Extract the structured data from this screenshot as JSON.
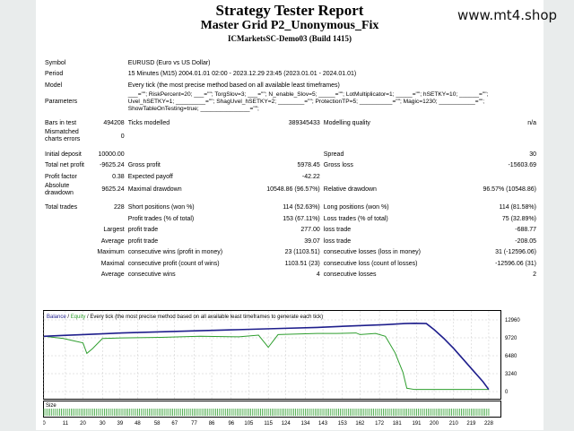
{
  "header": {
    "title": "Strategy Tester Report",
    "ea_name": "Master Grid P2_Unonymous_Fix",
    "server": "ICMarketsSC-Demo03 (Build 1415)",
    "watermark": "www.mt4.shop"
  },
  "report": {
    "symbol": {
      "label": "Symbol",
      "value": "EURUSD (Euro vs US Dollar)"
    },
    "period": {
      "label": "Period",
      "value": "15 Minutes (M15) 2004.01.01 02:00 - 2023.12.29 23:45 (2023.01.01 - 2024.01.01)"
    },
    "model": {
      "label": "Model",
      "value": "Every tick (the most precise method based on all available least timeframes)"
    },
    "parameters": {
      "label": "Parameters",
      "lines": [
        "___=\"\"; RiskPercent=20; ___=\"\"; TorgSlov=3; ___=\"\"; N_enable_Slov=5; _____=\"\"; LotMultiplicator=1; _____=\"\"; hSETKY=10; ______=\"\";",
        "Uvel_hSETKY=1; _________=\"\"; ShagUvel_hSETKY=2; ________=\"\"; ProtectionTP=5; __________=\"\"; Magic=1230; ___________=\"\";",
        "ShowTableOnTesting=true; _______________=\"\";"
      ]
    },
    "bars_in_test": {
      "label": "Bars in test",
      "value": "494208"
    },
    "ticks_modelled": {
      "label": "Ticks modelled",
      "value": "389345433"
    },
    "modelling_quality": {
      "label": "Modelling quality",
      "value": "n/a"
    },
    "mismatched": {
      "label_1": "Mismatched",
      "label_2": "charts errors",
      "value": "0"
    },
    "initial_deposit": {
      "label": "Initial deposit",
      "value": "10000.00"
    },
    "spread": {
      "label": "Spread",
      "value": "30"
    },
    "total_net_profit": {
      "label": "Total net profit",
      "value": "-9625.24"
    },
    "gross_profit": {
      "label": "Gross profit",
      "value": "5978.45"
    },
    "gross_loss": {
      "label": "Gross loss",
      "value": "-15603.69"
    },
    "profit_factor": {
      "label": "Profit factor",
      "value": "0.38"
    },
    "expected_payoff": {
      "label": "Expected payoff",
      "value": "-42.22"
    },
    "absolute_drawdown": {
      "label_1": "Absolute",
      "label_2": "drawdown",
      "value": "9625.24"
    },
    "maximal_drawdown": {
      "label": "Maximal drawdown",
      "value": "10548.86 (96.57%)"
    },
    "relative_drawdown": {
      "label": "Relative drawdown",
      "value": "96.57% (10548.86)"
    },
    "total_trades": {
      "label": "Total trades",
      "value": "228"
    },
    "short_positions": {
      "label": "Short positions (won %)",
      "value": "114 (52.63%)"
    },
    "long_positions": {
      "label": "Long positions (won %)",
      "value": "114 (81.58%)"
    },
    "profit_trades": {
      "label": "Profit trades (% of total)",
      "value": "153 (67.11%)"
    },
    "loss_trades": {
      "label": "Loss trades (% of total)",
      "value": "75 (32.89%)"
    },
    "largest": {
      "prefix": "Largest",
      "profit_label": "profit trade",
      "profit_value": "277.00",
      "loss_label": "loss trade",
      "loss_value": "-688.77"
    },
    "average": {
      "prefix": "Average",
      "profit_label": "profit trade",
      "profit_value": "39.07",
      "loss_label": "loss trade",
      "loss_value": "-208.05"
    },
    "maximum": {
      "prefix": "Maximum",
      "wins_label": "consecutive wins (profit in money)",
      "wins_value": "23 (1103.51)",
      "losses_label": "consecutive losses (loss in money)",
      "losses_value": "31 (-12596.06)"
    },
    "maximal": {
      "prefix": "Maximal",
      "wins_label": "consecutive profit (count of wins)",
      "wins_value": "1103.51 (23)",
      "losses_label": "consecutive loss (count of losses)",
      "losses_value": "-12596.06 (31)"
    },
    "average_consec": {
      "prefix": "Average",
      "wins_label": "consecutive wins",
      "wins_value": "4",
      "losses_label": "consecutive losses",
      "losses_value": "2"
    }
  },
  "chart_data": {
    "type": "line",
    "legend": {
      "balance": "Balance",
      "sep": " / ",
      "equity": "Equity",
      "desc": " / Every tick (the most precise method based on all available least timeframes to generate each tick)"
    },
    "size_label": "Size",
    "colors": {
      "balance": "#1e1e8c",
      "equity": "#2e9e2e",
      "size": "#2e9e2e",
      "grid": "#c8c8c8"
    },
    "ylim": [
      0,
      12960
    ],
    "yticks": [
      "12960",
      "9720",
      "6480",
      "3240",
      "0"
    ],
    "xlim": [
      0,
      234
    ],
    "xticks": [
      "0",
      "11",
      "20",
      "30",
      "39",
      "48",
      "58",
      "67",
      "77",
      "86",
      "96",
      "105",
      "115",
      "124",
      "134",
      "143",
      "153",
      "162",
      "172",
      "181",
      "191",
      "200",
      "210",
      "219",
      "228"
    ],
    "series": [
      {
        "name": "Balance",
        "x": [
          0,
          10,
          20,
          40,
          60,
          80,
          100,
          120,
          140,
          160,
          175,
          185,
          190,
          196,
          200,
          205,
          210,
          215,
          220,
          225,
          228
        ],
        "values": [
          10000,
          10150,
          10300,
          10600,
          10800,
          11000,
          11200,
          11400,
          11600,
          11900,
          12100,
          12300,
          12350,
          12300,
          11200,
          9600,
          7800,
          5800,
          3800,
          1800,
          375
        ]
      },
      {
        "name": "Equity",
        "x": [
          0,
          10,
          20,
          22,
          25,
          30,
          40,
          60,
          80,
          100,
          110,
          115,
          120,
          130,
          140,
          150,
          160,
          162,
          170,
          175,
          180,
          184,
          186,
          190,
          228
        ],
        "values": [
          10000,
          9600,
          8800,
          6900,
          7800,
          9600,
          9700,
          9800,
          10000,
          9900,
          10200,
          8000,
          10300,
          10400,
          10500,
          10500,
          10600,
          10300,
          10500,
          10000,
          7000,
          3500,
          600,
          375,
          375
        ]
      }
    ]
  }
}
